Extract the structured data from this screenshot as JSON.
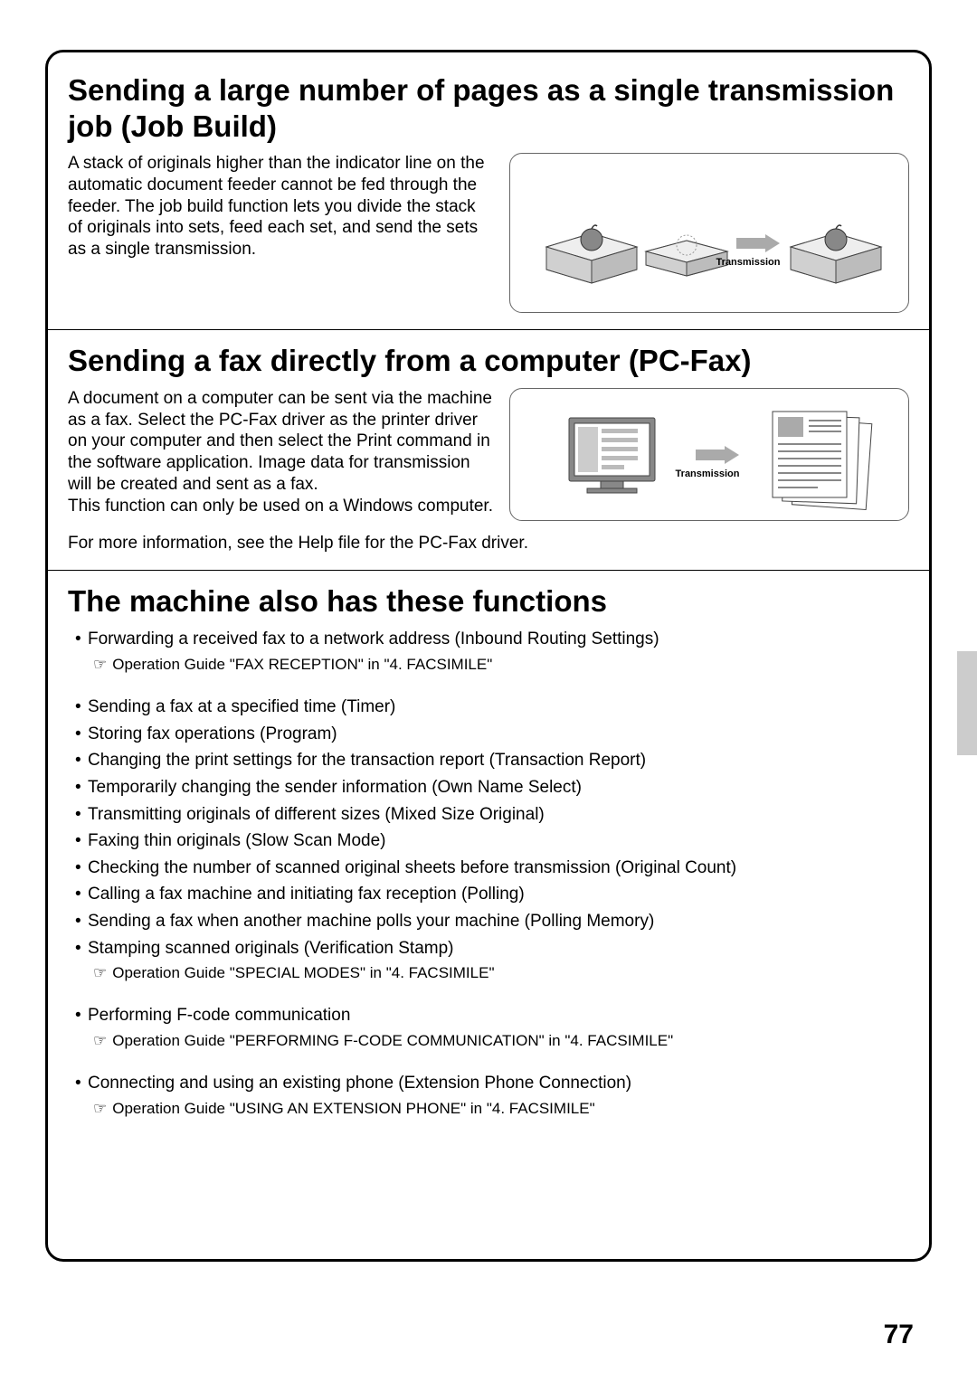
{
  "pageNumber": "77",
  "section1": {
    "title": "Sending a large number of pages as a single transmission job (Job Build)",
    "body": "A stack of originals higher than the indicator line on the automatic document feeder cannot be fed through the feeder. The job build function lets you divide the stack of originals into sets, feed each set, and send the sets as a single transmission.",
    "transmissionLabel": "Transmission"
  },
  "section2": {
    "title": "Sending a fax directly from a computer (PC-Fax)",
    "body": "A document on a computer can be sent via the machine as a fax. Select the PC-Fax driver as the printer driver on your computer and then select the Print command in the software application. Image data for transmission will be created and sent as a fax.\nThis function can only be used on a Windows computer.",
    "info": "For more information, see the Help file for the PC-Fax driver.",
    "transmissionLabel": "Transmission"
  },
  "section3": {
    "title": "The machine also has these functions",
    "items": [
      {
        "text": "Forwarding a received fax to a network address (Inbound Routing Settings)",
        "guide": "Operation Guide \"FAX RECEPTION\" in \"4. FACSIMILE\"",
        "spaced": false
      },
      {
        "text": "Sending a fax at a specified time (Timer)",
        "spaced": true
      },
      {
        "text": "Storing fax operations (Program)"
      },
      {
        "text": "Changing the print settings for the transaction report (Transaction Report)"
      },
      {
        "text": "Temporarily changing the sender information (Own Name Select)"
      },
      {
        "text": "Transmitting originals of different sizes (Mixed Size Original)"
      },
      {
        "text": "Faxing thin originals (Slow Scan Mode)"
      },
      {
        "text": "Checking the number of scanned original sheets before transmission (Original Count)"
      },
      {
        "text": "Calling a fax machine and initiating fax reception (Polling)"
      },
      {
        "text": "Sending a fax when another machine polls your machine (Polling Memory)"
      },
      {
        "text": "Stamping scanned originals (Verification Stamp)",
        "guide": "Operation Guide \"SPECIAL MODES\" in \"4. FACSIMILE\""
      },
      {
        "text": "Performing F-code communication",
        "guide": "Operation Guide \"PERFORMING F-CODE COMMUNICATION\" in \"4. FACSIMILE\"",
        "spaced": true
      },
      {
        "text": "Connecting and using an existing phone (Extension Phone Connection)",
        "guide": "Operation Guide \"USING AN EXTENSION PHONE\" in \"4. FACSIMILE\"",
        "spaced": true
      }
    ]
  },
  "colors": {
    "border": "#000000",
    "illusBorder": "#666666",
    "gray": "#9e9e9e",
    "lightGray": "#d0d0d0",
    "darkGray": "#5a5a5a",
    "tab": "#cccccc"
  }
}
